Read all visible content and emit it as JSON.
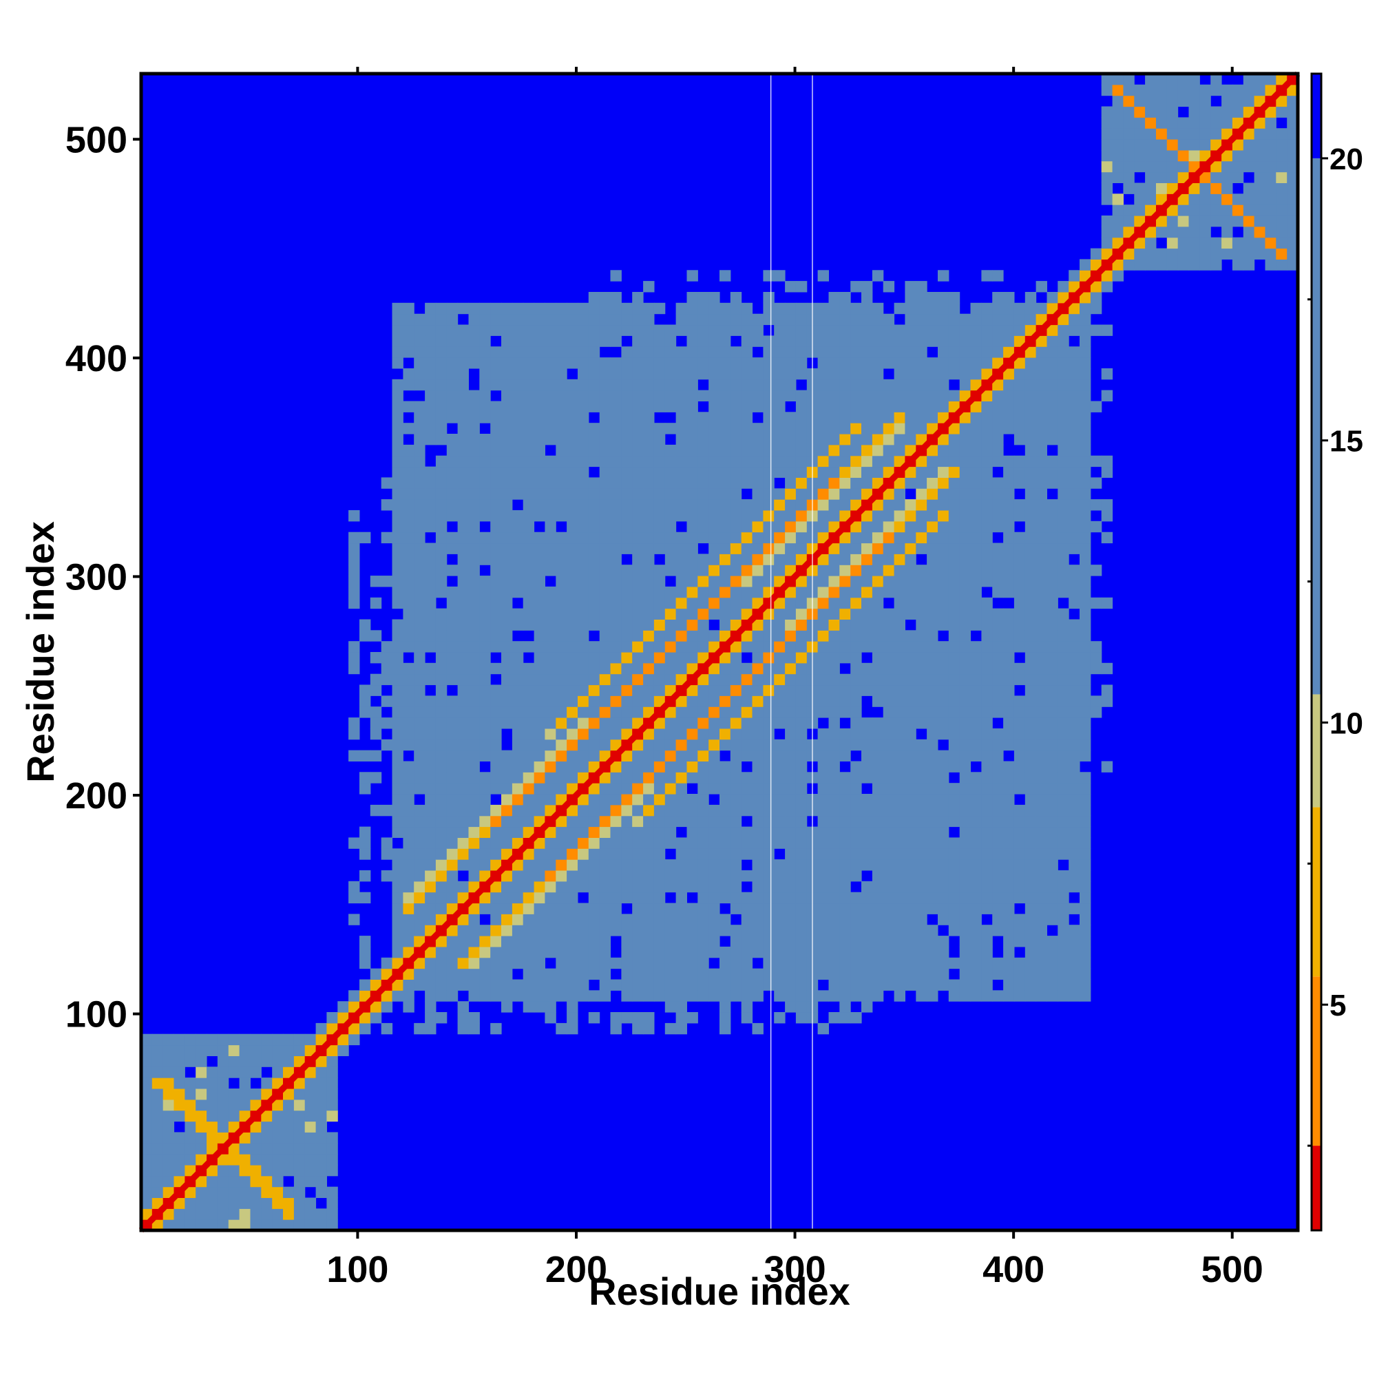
{
  "chart_data": {
    "type": "heatmap",
    "title": "",
    "xlabel": "Residue index",
    "ylabel": "Residue index",
    "xlim": [
      1,
      530
    ],
    "ylim": [
      1,
      530
    ],
    "x_ticks": [
      100,
      200,
      300,
      400,
      500
    ],
    "y_ticks": [
      100,
      200,
      300,
      400,
      500
    ],
    "x_tick_labels": [
      "100",
      "200",
      "300",
      "400",
      "500"
    ],
    "y_tick_labels": [
      "100",
      "200",
      "300",
      "400",
      "500"
    ],
    "colorbar": {
      "range": [
        1,
        21.5
      ],
      "ticks": [
        5,
        10,
        15,
        20
      ],
      "tick_labels": [
        "5",
        "10",
        "15",
        "20"
      ],
      "colors": {
        "near": "#e00000",
        "mid": "#ff8c00",
        "warm": "#f0b000",
        "transition": "#c8c880",
        "medium": "#5b89bd",
        "far": "#0000f8"
      },
      "thresholds": [
        2.5,
        5.5,
        8.5,
        10.5,
        20.0
      ]
    },
    "diagonal": {
      "from": 1,
      "to": 530,
      "distance": 1.0
    },
    "contact_bands": [
      {
        "name": "parallel-upper",
        "x1": 122,
        "y1": 148,
        "x2": 348,
        "y2": 372,
        "distance": 5.0
      },
      {
        "name": "parallel-lower",
        "x1": 148,
        "y1": 122,
        "x2": 372,
        "y2": 348,
        "distance": 5.0
      },
      {
        "name": "hairpin-n-term-1",
        "x1": 10,
        "y1": 70,
        "x2": 70,
        "y2": 10,
        "distance": 4.5
      },
      {
        "name": "hairpin-c-term-1",
        "x1": 445,
        "y1": 525,
        "x2": 525,
        "y2": 445,
        "distance": 4.5
      },
      {
        "name": "upper-offset-2",
        "x1": 190,
        "y1": 230,
        "x2": 330,
        "y2": 370,
        "distance": 6.0
      },
      {
        "name": "lower-offset-2",
        "x1": 230,
        "y1": 190,
        "x2": 370,
        "y2": 330,
        "distance": 6.0
      }
    ],
    "domains": [
      {
        "name": "n-terminal-domain",
        "x": [
          1,
          90
        ],
        "y": [
          1,
          90
        ],
        "distance": 12
      },
      {
        "name": "central-domain",
        "x": [
          115,
          435
        ],
        "y": [
          105,
          425
        ],
        "distance": 17
      },
      {
        "name": "c-terminal-domain",
        "x": [
          440,
          530
        ],
        "y": [
          440,
          530
        ],
        "distance": 12
      }
    ],
    "gap_columns": [
      289,
      308
    ]
  }
}
